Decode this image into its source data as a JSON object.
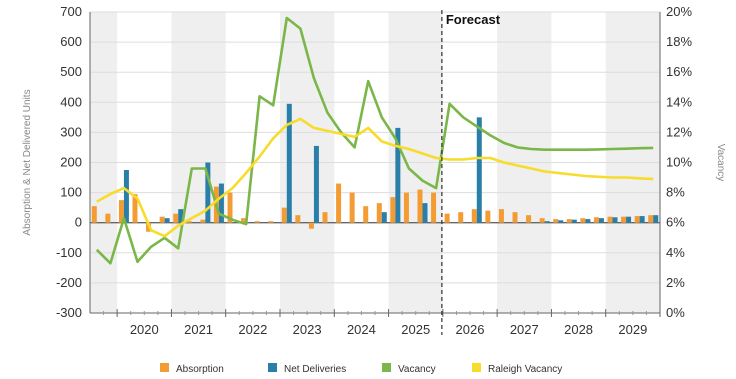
{
  "chart_data": {
    "type": "bar",
    "annotation": "Forecast",
    "forecast_start": 2026.0,
    "years": [
      "2020",
      "2021",
      "2022",
      "2023",
      "2024",
      "2025",
      "2026",
      "2027",
      "2028",
      "2029"
    ],
    "ylabel_left": "Absorption & Net Delivered Units",
    "ylabel_right": "Vacancy",
    "ylim_left": [
      -300,
      700
    ],
    "left_ticks": [
      "700",
      "600",
      "500",
      "400",
      "300",
      "200",
      "100",
      "0",
      "-100",
      "-200",
      "-300"
    ],
    "ylim_right": [
      0,
      20
    ],
    "right_ticks": [
      "20%",
      "18%",
      "16%",
      "14%",
      "12%",
      "10%",
      "8%",
      "6%",
      "4%",
      "2%",
      "0%"
    ],
    "legend_position": "bottom",
    "series": [
      {
        "name": "Absorption",
        "color": "#f39c34",
        "kind": "bar",
        "x": [
          2019.625,
          2019.875,
          2020.125,
          2020.375,
          2020.625,
          2020.875,
          2021.125,
          2021.375,
          2021.625,
          2021.875,
          2022.125,
          2022.375,
          2022.625,
          2022.875,
          2023.125,
          2023.375,
          2023.625,
          2023.875,
          2024.125,
          2024.375,
          2024.625,
          2024.875,
          2025.125,
          2025.375,
          2025.625,
          2025.875,
          2026.125,
          2026.375,
          2026.625,
          2026.875,
          2027.125,
          2027.375,
          2027.625,
          2027.875,
          2028.125,
          2028.375,
          2028.625,
          2028.875,
          2029.125,
          2029.375,
          2029.625,
          2029.875
        ],
        "values": [
          55,
          30,
          75,
          95,
          -30,
          20,
          30,
          5,
          10,
          120,
          100,
          15,
          5,
          5,
          50,
          25,
          -20,
          35,
          130,
          100,
          55,
          65,
          85,
          100,
          110,
          100,
          30,
          35,
          45,
          40,
          45,
          35,
          25,
          15,
          12,
          12,
          15,
          18,
          20,
          20,
          22,
          25
        ]
      },
      {
        "name": "Net Deliveries",
        "color": "#2a7fa8",
        "kind": "bar",
        "x": [
          2019.625,
          2019.875,
          2020.125,
          2020.375,
          2020.625,
          2020.875,
          2021.125,
          2021.375,
          2021.625,
          2021.875,
          2022.125,
          2022.375,
          2022.625,
          2022.875,
          2023.125,
          2023.375,
          2023.625,
          2023.875,
          2024.125,
          2024.375,
          2024.625,
          2024.875,
          2025.125,
          2025.375,
          2025.625,
          2025.875,
          2026.125,
          2026.375,
          2026.625,
          2026.875,
          2027.125,
          2027.375,
          2027.625,
          2027.875,
          2028.125,
          2028.375,
          2028.625,
          2028.875,
          2029.125,
          2029.375,
          2029.625,
          2029.875
        ],
        "values": [
          0,
          0,
          175,
          0,
          0,
          15,
          45,
          0,
          200,
          130,
          0,
          0,
          0,
          0,
          395,
          0,
          255,
          0,
          0,
          0,
          0,
          35,
          315,
          0,
          65,
          0,
          0,
          0,
          350,
          0,
          0,
          0,
          0,
          5,
          8,
          10,
          12,
          15,
          18,
          20,
          22,
          25
        ]
      },
      {
        "name": "Vacancy",
        "color": "#7ab648",
        "kind": "line",
        "x": [
          2019.625,
          2019.875,
          2020.125,
          2020.375,
          2020.625,
          2020.875,
          2021.125,
          2021.375,
          2021.625,
          2021.875,
          2022.125,
          2022.375,
          2022.625,
          2022.875,
          2023.125,
          2023.375,
          2023.625,
          2023.875,
          2024.125,
          2024.375,
          2024.625,
          2024.875,
          2025.125,
          2025.375,
          2025.625,
          2025.875,
          2026.125,
          2026.375,
          2026.625,
          2026.875,
          2027.125,
          2027.375,
          2027.625,
          2027.875,
          2028.125,
          2028.375,
          2028.625,
          2028.875,
          2029.125,
          2029.375,
          2029.625,
          2029.875
        ],
        "values": [
          4.2,
          3.3,
          6.3,
          3.4,
          4.4,
          5.0,
          4.3,
          9.6,
          9.6,
          6.6,
          6.2,
          5.9,
          14.4,
          13.8,
          19.6,
          18.9,
          15.6,
          13.3,
          12.0,
          11.0,
          15.4,
          13.0,
          11.6,
          9.6,
          8.8,
          8.3,
          13.9,
          13.0,
          12.4,
          11.8,
          11.3,
          11.0,
          10.9,
          10.85,
          10.85,
          10.85,
          10.85,
          10.87,
          10.9,
          10.92,
          10.95,
          10.97
        ]
      },
      {
        "name": "Raleigh Vacancy",
        "color": "#f7dc2c",
        "kind": "line",
        "x": [
          2019.625,
          2019.875,
          2020.125,
          2020.375,
          2020.625,
          2020.875,
          2021.125,
          2021.375,
          2021.625,
          2021.875,
          2022.125,
          2022.375,
          2022.625,
          2022.875,
          2023.125,
          2023.375,
          2023.625,
          2023.875,
          2024.125,
          2024.375,
          2024.625,
          2024.875,
          2025.125,
          2025.375,
          2025.625,
          2025.875,
          2026.125,
          2026.375,
          2026.625,
          2026.875,
          2027.125,
          2027.375,
          2027.625,
          2027.875,
          2028.125,
          2028.375,
          2028.625,
          2028.875,
          2029.125,
          2029.375,
          2029.625,
          2029.875
        ],
        "values": [
          7.4,
          7.9,
          8.3,
          7.6,
          5.5,
          5.1,
          5.8,
          6.3,
          6.8,
          7.6,
          8.3,
          9.3,
          10.4,
          11.6,
          12.5,
          12.9,
          12.3,
          12.1,
          11.9,
          11.7,
          12.3,
          11.4,
          11.1,
          10.9,
          10.6,
          10.3,
          10.2,
          10.2,
          10.3,
          10.3,
          10.0,
          9.8,
          9.6,
          9.4,
          9.3,
          9.2,
          9.1,
          9.05,
          9.0,
          9.0,
          8.95,
          8.9
        ]
      }
    ]
  }
}
